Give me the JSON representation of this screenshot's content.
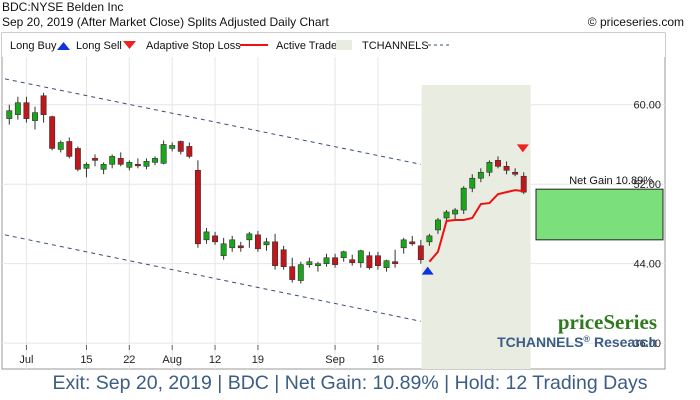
{
  "header": {
    "title": "BDC:NYSE Belden Inc",
    "subtitle": "Sep 20, 2019 (After Market Close)  Splits Adjusted Daily Chart",
    "copyright": "© priceseries.com"
  },
  "legend": {
    "long_buy": "Long Buy",
    "long_sell": "Long Sell",
    "adaptive_stop": "Adaptive Stop Loss",
    "active_trade": "Active Trade",
    "tchannels": "TCHANNELS"
  },
  "brand": {
    "name": "priceSeries",
    "research": "TCHANNELS",
    "registered": "®",
    "research_suffix": " Research"
  },
  "footer": "Exit: Sep 20, 2019 | BDC | Net Gain: 10.89% | Hold: 12 Trading Days",
  "colors": {
    "up": "#1aa51a",
    "down": "#c0171c",
    "stop": "#ee1111",
    "buy": "#1133dd",
    "sell": "#ee2222",
    "trade_zone": "#e9ece0",
    "gain_box": "#7be07b",
    "channel": "#3a4d75",
    "brand_green": "#2f7a1f",
    "brand_blue": "#3b5d86"
  },
  "chart_data": {
    "type": "candlestick",
    "y_ticks": [
      36,
      44,
      52,
      60
    ],
    "x_ticks": [
      {
        "label": "Jul",
        "i": 2
      },
      {
        "label": "15",
        "i": 9
      },
      {
        "label": "22",
        "i": 14
      },
      {
        "label": "Aug",
        "i": 19
      },
      {
        "label": "12",
        "i": 24
      },
      {
        "label": "19",
        "i": 29
      },
      {
        "label": "Sep",
        "i": 38
      },
      {
        "label": "16",
        "i": 43
      }
    ],
    "ylim": [
      33.5,
      64.5
    ],
    "candles": [
      {
        "o": 58.6,
        "h": 60.0,
        "l": 58.0,
        "c": 59.4
      },
      {
        "o": 59.0,
        "h": 60.8,
        "l": 58.5,
        "c": 60.2
      },
      {
        "o": 60.2,
        "h": 60.8,
        "l": 58.2,
        "c": 58.6
      },
      {
        "o": 58.4,
        "h": 59.8,
        "l": 57.5,
        "c": 59.2
      },
      {
        "o": 60.9,
        "h": 61.2,
        "l": 58.2,
        "c": 59.0
      },
      {
        "o": 58.8,
        "h": 58.9,
        "l": 55.4,
        "c": 55.6
      },
      {
        "o": 55.5,
        "h": 56.4,
        "l": 55.2,
        "c": 56.2
      },
      {
        "o": 56.3,
        "h": 56.7,
        "l": 54.6,
        "c": 54.8
      },
      {
        "o": 55.6,
        "h": 55.8,
        "l": 53.3,
        "c": 53.5
      },
      {
        "o": 53.6,
        "h": 54.2,
        "l": 52.7,
        "c": 54.0
      },
      {
        "o": 54.6,
        "h": 55.0,
        "l": 53.8,
        "c": 54.4
      },
      {
        "o": 53.5,
        "h": 54.2,
        "l": 53.0,
        "c": 54.0
      },
      {
        "o": 54.0,
        "h": 55.0,
        "l": 53.6,
        "c": 54.8
      },
      {
        "o": 54.6,
        "h": 55.2,
        "l": 53.8,
        "c": 54.0
      },
      {
        "o": 53.7,
        "h": 54.4,
        "l": 53.4,
        "c": 54.2
      },
      {
        "o": 54.0,
        "h": 54.6,
        "l": 53.6,
        "c": 53.9
      },
      {
        "o": 53.8,
        "h": 54.6,
        "l": 53.5,
        "c": 54.3
      },
      {
        "o": 54.2,
        "h": 54.8,
        "l": 53.9,
        "c": 54.6
      },
      {
        "o": 54.1,
        "h": 56.4,
        "l": 54.0,
        "c": 56.0
      },
      {
        "o": 55.6,
        "h": 56.2,
        "l": 55.3,
        "c": 55.9
      },
      {
        "o": 56.3,
        "h": 56.4,
        "l": 55.0,
        "c": 55.3
      },
      {
        "o": 55.8,
        "h": 56.2,
        "l": 54.6,
        "c": 54.8
      },
      {
        "o": 53.4,
        "h": 54.4,
        "l": 45.6,
        "c": 46.0
      },
      {
        "o": 46.4,
        "h": 47.6,
        "l": 46.0,
        "c": 47.2
      },
      {
        "o": 46.8,
        "h": 47.2,
        "l": 45.9,
        "c": 46.2
      },
      {
        "o": 44.8,
        "h": 46.6,
        "l": 44.4,
        "c": 46.0
      },
      {
        "o": 45.6,
        "h": 46.8,
        "l": 45.2,
        "c": 46.4
      },
      {
        "o": 45.8,
        "h": 46.2,
        "l": 45.2,
        "c": 45.6
      },
      {
        "o": 46.4,
        "h": 47.2,
        "l": 45.6,
        "c": 47.0
      },
      {
        "o": 46.9,
        "h": 47.3,
        "l": 45.2,
        "c": 45.5
      },
      {
        "o": 45.9,
        "h": 46.6,
        "l": 45.3,
        "c": 46.2
      },
      {
        "o": 46.2,
        "h": 47.0,
        "l": 43.4,
        "c": 43.8
      },
      {
        "o": 45.4,
        "h": 45.8,
        "l": 43.4,
        "c": 43.7
      },
      {
        "o": 43.7,
        "h": 44.6,
        "l": 42.1,
        "c": 42.4
      },
      {
        "o": 42.3,
        "h": 44.2,
        "l": 42.0,
        "c": 43.9
      },
      {
        "o": 43.9,
        "h": 44.6,
        "l": 43.6,
        "c": 44.2
      },
      {
        "o": 43.8,
        "h": 44.2,
        "l": 43.2,
        "c": 44.0
      }
    ],
    "candles2": [
      {
        "o": 44.0,
        "h": 45.0,
        "l": 43.7,
        "c": 44.6
      },
      {
        "o": 44.6,
        "h": 45.0,
        "l": 43.6,
        "c": 43.9
      },
      {
        "o": 44.6,
        "h": 45.3,
        "l": 44.2,
        "c": 45.2
      },
      {
        "o": 44.4,
        "h": 44.9,
        "l": 43.8,
        "c": 44.1
      },
      {
        "o": 44.1,
        "h": 45.4,
        "l": 43.6,
        "c": 45.3
      },
      {
        "o": 44.8,
        "h": 45.2,
        "l": 43.4,
        "c": 43.6
      },
      {
        "o": 44.8,
        "h": 45.2,
        "l": 43.4,
        "c": 43.8
      },
      {
        "o": 43.6,
        "h": 44.4,
        "l": 43.2,
        "c": 44.3
      },
      {
        "o": 44.2,
        "h": 45.4,
        "l": 43.6,
        "c": 44.0
      },
      {
        "o": 45.6,
        "h": 46.6,
        "l": 45.0,
        "c": 46.4
      },
      {
        "o": 46.2,
        "h": 46.8,
        "l": 45.8,
        "c": 46.0
      },
      {
        "o": 45.8,
        "h": 46.4,
        "l": 44.0,
        "c": 44.4
      },
      {
        "o": 46.2,
        "h": 47.0,
        "l": 45.8,
        "c": 46.8
      }
    ],
    "candles3": [
      {
        "o": 47.4,
        "h": 48.6,
        "l": 47.0,
        "c": 48.4
      },
      {
        "o": 48.6,
        "h": 49.4,
        "l": 48.2,
        "c": 49.2
      },
      {
        "o": 49.0,
        "h": 49.6,
        "l": 48.4,
        "c": 49.4
      },
      {
        "o": 49.4,
        "h": 51.8,
        "l": 49.0,
        "c": 51.6
      },
      {
        "o": 51.6,
        "h": 53.0,
        "l": 51.2,
        "c": 52.6
      },
      {
        "o": 52.6,
        "h": 53.6,
        "l": 52.2,
        "c": 53.2
      },
      {
        "o": 53.2,
        "h": 54.4,
        "l": 52.8,
        "c": 54.2
      },
      {
        "o": 54.4,
        "h": 54.8,
        "l": 53.6,
        "c": 53.8
      },
      {
        "o": 53.8,
        "h": 54.3,
        "l": 53.0,
        "c": 53.4
      },
      {
        "o": 53.2,
        "h": 53.6,
        "l": 52.8,
        "c": 53.0
      },
      {
        "o": 52.8,
        "h": 53.2,
        "l": 51.0,
        "c": 51.2
      }
    ],
    "stop_loss": [
      44.2,
      45.2,
      48.3,
      48.4,
      48.4,
      48.6,
      50.0,
      50.1,
      51.0,
      51.2,
      51.4,
      51.3
    ],
    "buy_signal": {
      "price": 43.2
    },
    "sell_signal": {
      "price": 55.6
    },
    "net_gain_label": "Net Gain 10.89%",
    "gain_box": {
      "top": 51.5,
      "bottom": 46.4
    },
    "channel_upper": [
      {
        "i": 0,
        "y": 62.6
      },
      {
        "i": 48,
        "y": 54.0
      }
    ],
    "channel_lower": [
      {
        "i": 0,
        "y": 46.9
      },
      {
        "i": 48,
        "y": 38.2
      }
    ]
  }
}
